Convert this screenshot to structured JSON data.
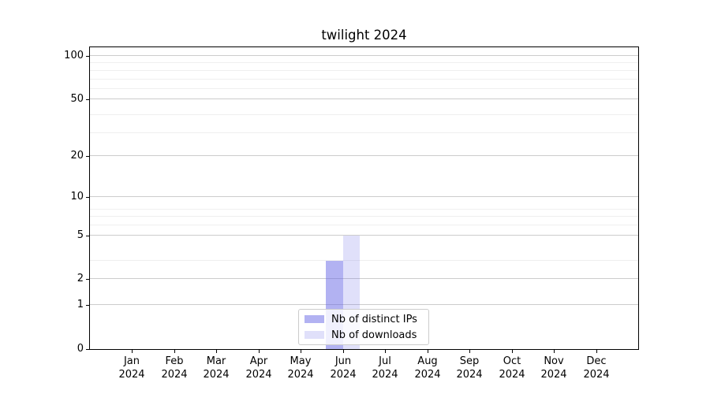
{
  "figure": {
    "background": "#ffffff"
  },
  "chart_data": {
    "type": "bar",
    "title": "twilight 2024",
    "categories": [
      "Jan",
      "Feb",
      "Mar",
      "Apr",
      "May",
      "Jun",
      "Jul",
      "Aug",
      "Sep",
      "Oct",
      "Nov",
      "Dec"
    ],
    "category_year": "2024",
    "series": [
      {
        "name": "Nb of distinct IPs",
        "color": "rgba(102,102,229,0.5)",
        "values": [
          0,
          0,
          0,
          0,
          0,
          3,
          0,
          0,
          0,
          0,
          0,
          0
        ]
      },
      {
        "name": "Nb of downloads",
        "color": "rgba(102,102,229,0.2)",
        "values": [
          0,
          0,
          0,
          0,
          0,
          5,
          0,
          0,
          0,
          0,
          0,
          0
        ]
      }
    ],
    "xlabel": "",
    "ylabel": "",
    "yscale": "log1p",
    "yticks": [
      0,
      1,
      2,
      5,
      10,
      20,
      50,
      100
    ],
    "ylim": [
      0,
      115
    ],
    "grid": "horizontal major+minor",
    "legend_position": "lower center",
    "colors": {
      "grid_major": "#cccccc",
      "grid_minor": "#efefef",
      "spine": "#000000",
      "text": "#000000",
      "legend_border": "#cccccc",
      "legend_background": "rgba(255,255,255,0.8)"
    }
  }
}
